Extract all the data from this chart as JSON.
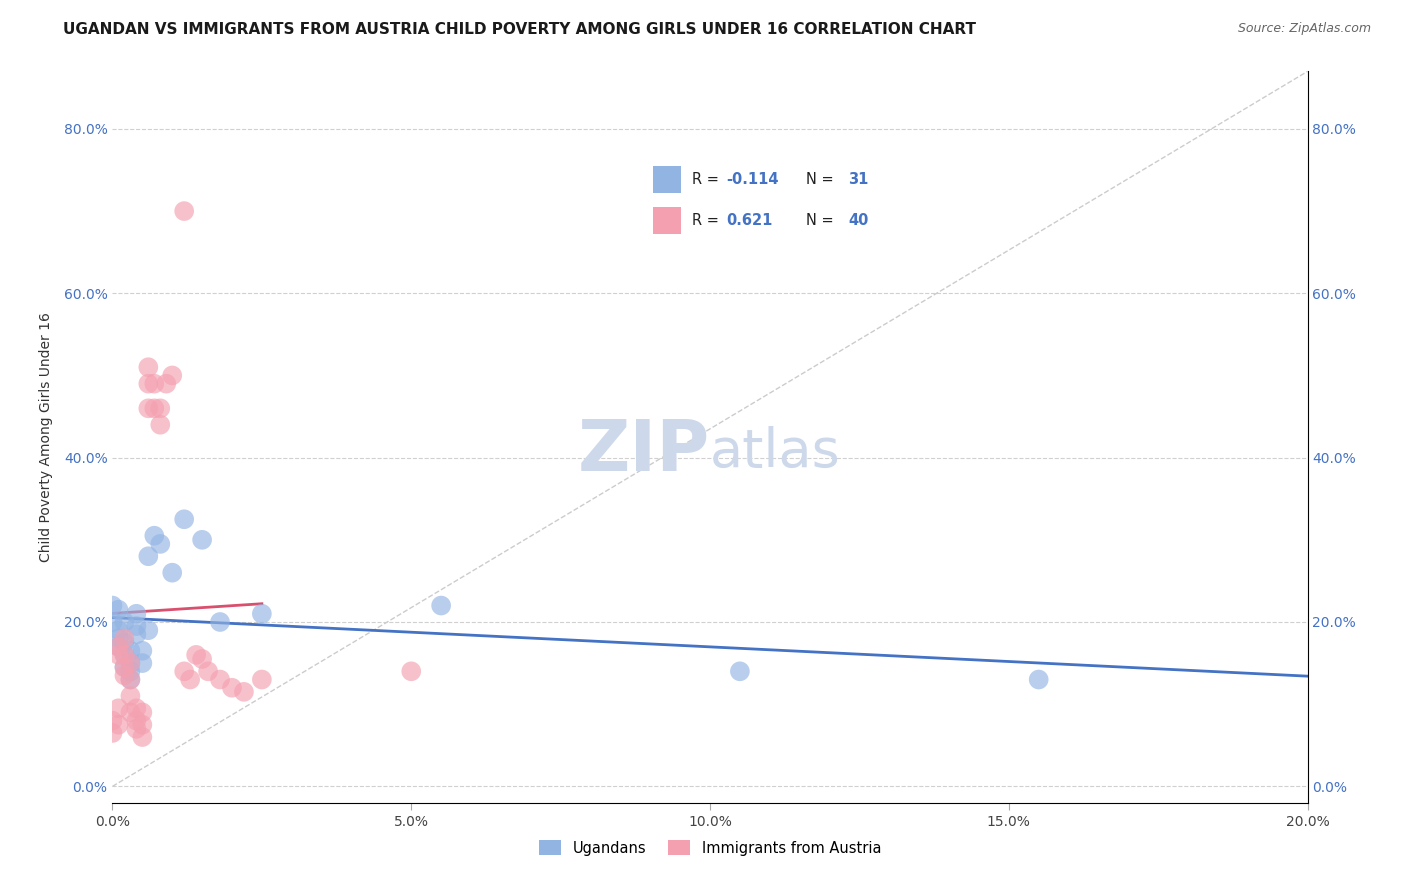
{
  "title": "UGANDAN VS IMMIGRANTS FROM AUSTRIA CHILD POVERTY AMONG GIRLS UNDER 16 CORRELATION CHART",
  "source": "Source: ZipAtlas.com",
  "ylabel": "Child Poverty Among Girls Under 16",
  "xlim": [
    0.0,
    0.2
  ],
  "ylim": [
    -0.02,
    0.87
  ],
  "ugandan_R": -0.114,
  "ugandan_N": 31,
  "austria_R": 0.621,
  "austria_N": 40,
  "ugandan_color": "#92b4e3",
  "austria_color": "#f4a0b0",
  "ugandan_line_color": "#4472c4",
  "austria_line_color": "#d94f6e",
  "diag_color": "#cccccc",
  "watermark_color": "#cdd9ea",
  "title_fontsize": 11,
  "axis_label_fontsize": 10,
  "tick_fontsize": 10,
  "watermark_fontsize": 52,
  "legend_fontsize": 11,
  "ugandan_x": [
    0.0,
    0.0,
    0.001,
    0.001,
    0.001,
    0.001,
    0.002,
    0.002,
    0.002,
    0.002,
    0.003,
    0.003,
    0.003,
    0.003,
    0.004,
    0.004,
    0.004,
    0.005,
    0.005,
    0.006,
    0.006,
    0.007,
    0.008,
    0.01,
    0.012,
    0.015,
    0.018,
    0.025,
    0.055,
    0.105,
    0.155
  ],
  "ugandan_y": [
    0.2,
    0.22,
    0.19,
    0.17,
    0.215,
    0.18,
    0.16,
    0.145,
    0.2,
    0.175,
    0.13,
    0.15,
    0.165,
    0.14,
    0.21,
    0.195,
    0.185,
    0.165,
    0.15,
    0.19,
    0.28,
    0.305,
    0.295,
    0.26,
    0.325,
    0.3,
    0.2,
    0.21,
    0.22,
    0.14,
    0.13
  ],
  "austria_x": [
    0.0,
    0.0,
    0.001,
    0.001,
    0.001,
    0.001,
    0.002,
    0.002,
    0.002,
    0.002,
    0.003,
    0.003,
    0.003,
    0.003,
    0.004,
    0.004,
    0.004,
    0.005,
    0.005,
    0.005,
    0.006,
    0.006,
    0.006,
    0.007,
    0.007,
    0.008,
    0.008,
    0.009,
    0.01,
    0.012,
    0.013,
    0.014,
    0.015,
    0.016,
    0.018,
    0.02,
    0.022,
    0.025,
    0.05,
    0.012
  ],
  "austria_y": [
    0.08,
    0.065,
    0.095,
    0.075,
    0.17,
    0.16,
    0.145,
    0.135,
    0.18,
    0.16,
    0.09,
    0.11,
    0.13,
    0.15,
    0.08,
    0.07,
    0.095,
    0.075,
    0.09,
    0.06,
    0.46,
    0.49,
    0.51,
    0.46,
    0.49,
    0.44,
    0.46,
    0.49,
    0.5,
    0.14,
    0.13,
    0.16,
    0.155,
    0.14,
    0.13,
    0.12,
    0.115,
    0.13,
    0.14,
    0.7
  ]
}
